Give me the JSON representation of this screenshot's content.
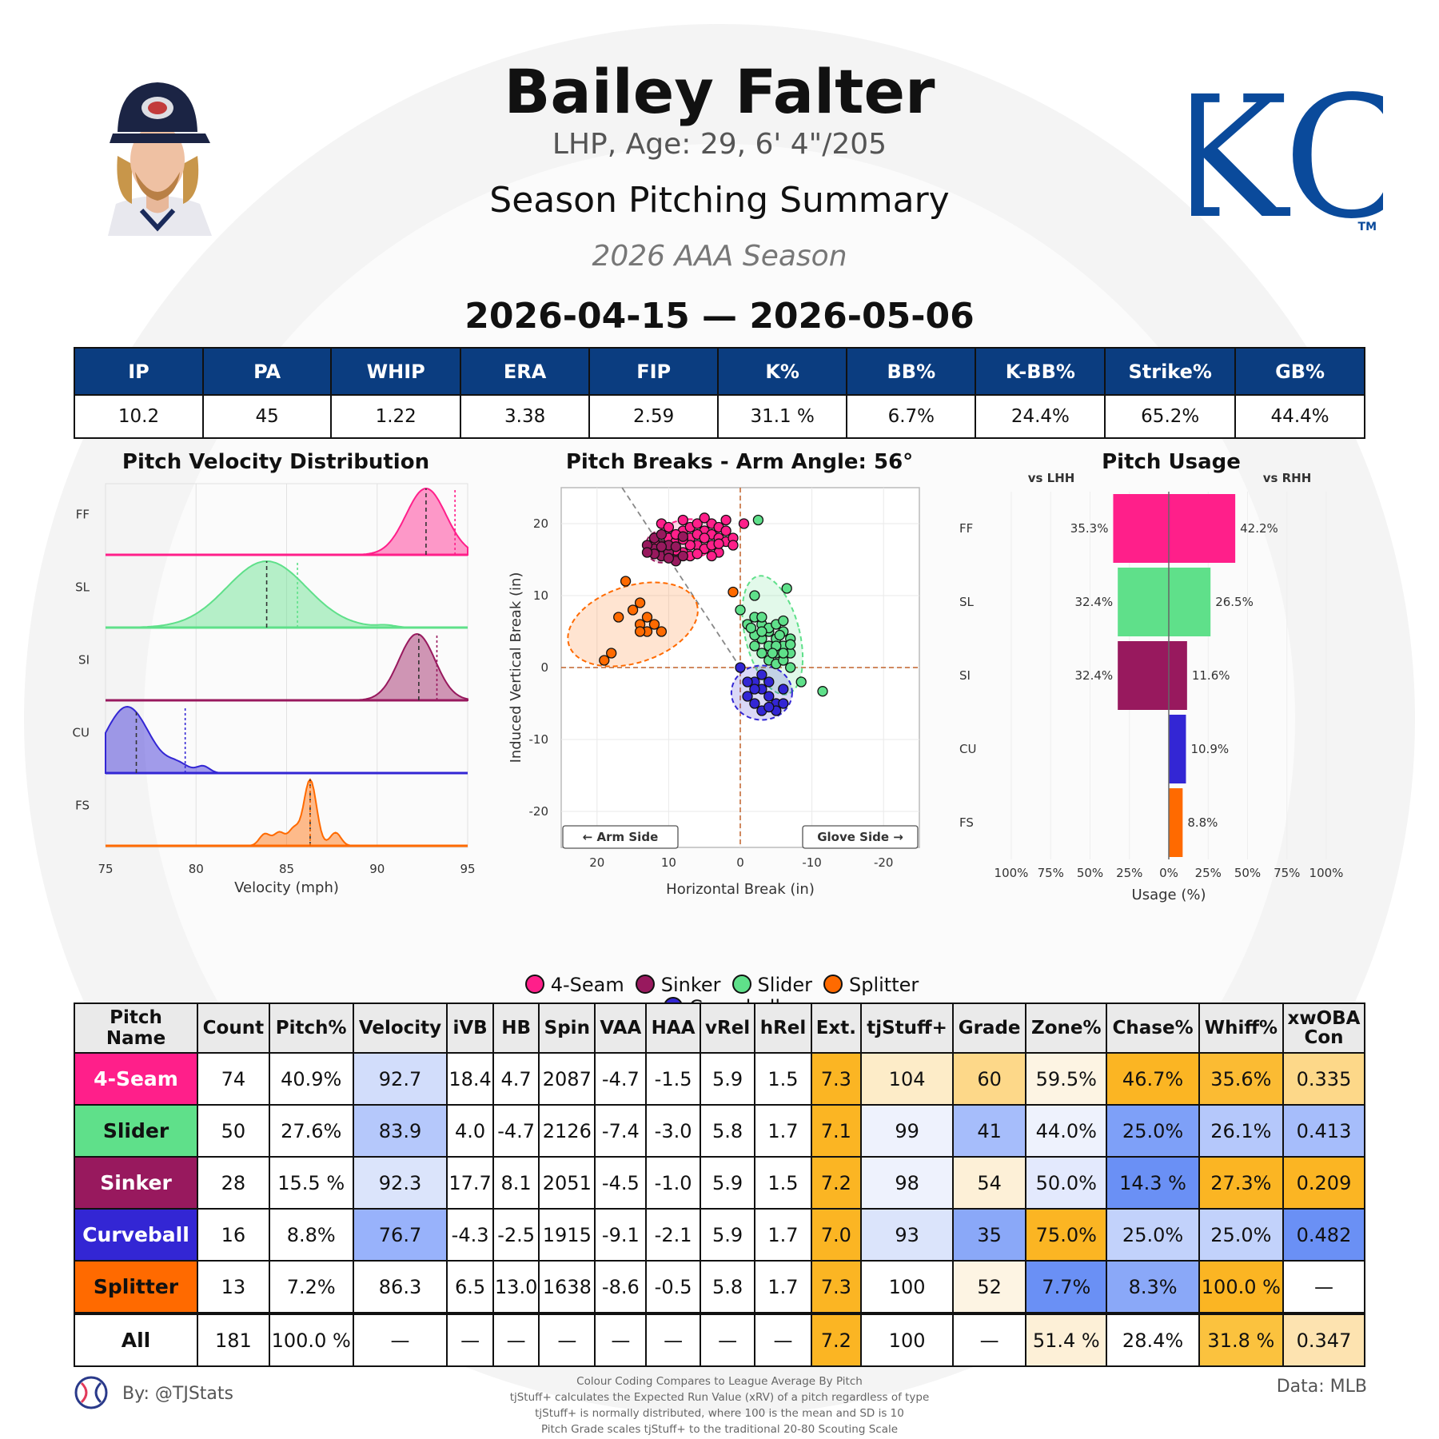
{
  "header": {
    "player_name": "Bailey Falter",
    "bio": "LHP, Age: 29, 6' 4\"/205",
    "summary_title": "Season Pitching Summary",
    "season": "2026 AAA Season",
    "date_range": "2026-04-15 — 2026-05-06",
    "logo_text": "KC",
    "logo_tm": "TM"
  },
  "colors": {
    "header_blue": "#0b3d80",
    "4-Seam": "#ff1f8a",
    "Sinker": "#98195e",
    "Slider": "#5fe08a",
    "Splitter": "#ff6a00",
    "Curveball": "#3326d4"
  },
  "stats": {
    "headers": [
      "IP",
      "PA",
      "WHIP",
      "ERA",
      "FIP",
      "K%",
      "BB%",
      "K-BB%",
      "Strike%",
      "GB%"
    ],
    "values": [
      "10.2",
      "45",
      "1.22",
      "3.38",
      "2.59",
      "31.1 %",
      "6.7%",
      "24.4%",
      "65.2%",
      "44.4%"
    ]
  },
  "charts": {
    "velocity": {
      "title": "Pitch Velocity Distribution",
      "xlabel": "Velocity (mph)",
      "xticks": [
        "75",
        "80",
        "85",
        "90",
        "95"
      ]
    },
    "breaks": {
      "title": "Pitch Breaks - Arm Angle: 56°",
      "xlabel": "Horizontal Break (in)",
      "ylabel": "Induced Vertical Break (in)",
      "xticks": [
        "20",
        "10",
        "0",
        "-10",
        "-20"
      ],
      "yticks": [
        "20",
        "10",
        "0",
        "-10",
        "-20"
      ],
      "arm_side_label": "← Arm Side",
      "glove_side_label": "Glove Side →"
    },
    "usage": {
      "title": "Pitch Usage",
      "lhh_label": "vs LHH",
      "rhh_label": "vs RHH",
      "xlabel": "Usage (%)",
      "xticks": [
        "100%",
        "75%",
        "50%",
        "25%",
        "0%",
        "25%",
        "50%",
        "75%",
        "100%"
      ]
    }
  },
  "chart_data": [
    {
      "type": "area",
      "title": "Pitch Velocity Distribution",
      "xlabel": "Velocity (mph)",
      "xlim": [
        75,
        95
      ],
      "series": [
        {
          "name": "FF",
          "pitch": "4-Seam",
          "mean": 92.7,
          "peak": 92.7,
          "spread": 1.1,
          "marker": 94.3
        },
        {
          "name": "SL",
          "pitch": "Slider",
          "mean": 83.9,
          "peak": 83.9,
          "spread": 2.2,
          "marker": 85.6
        },
        {
          "name": "SI",
          "pitch": "Sinker",
          "mean": 92.3,
          "peak": 92.2,
          "spread": 1.0,
          "marker": 93.3
        },
        {
          "name": "CU",
          "pitch": "Curveball",
          "mean": 76.7,
          "peak": 76.2,
          "spread": 1.2,
          "marker": 79.4
        },
        {
          "name": "FS",
          "pitch": "Splitter",
          "mean": 86.3,
          "peak": 86.3,
          "spread": 0.35,
          "marker": 86.3
        }
      ]
    },
    {
      "type": "scatter",
      "title": "Pitch Breaks - Arm Angle: 56°",
      "xlabel": "Horizontal Break (in)",
      "ylabel": "Induced Vertical Break (in)",
      "xlim": [
        25,
        -25
      ],
      "ylim": [
        -25,
        25
      ],
      "series": [
        {
          "name": "4-Seam",
          "points": [
            [
              11,
              20
            ],
            [
              10,
              18
            ],
            [
              9,
              17.5
            ],
            [
              8,
              19
            ],
            [
              7,
              18
            ],
            [
              6,
              17
            ],
            [
              5,
              19
            ],
            [
              4,
              18.5
            ],
            [
              3,
              18
            ],
            [
              2,
              17.5
            ],
            [
              1,
              18
            ],
            [
              8,
              16
            ],
            [
              7,
              19.5
            ],
            [
              6,
              20
            ],
            [
              5,
              16.5
            ],
            [
              4,
              20
            ],
            [
              3,
              19.5
            ],
            [
              2,
              19
            ],
            [
              1,
              17
            ],
            [
              9,
              18.5
            ],
            [
              10,
              16.5
            ],
            [
              11,
              17
            ],
            [
              12,
              17.5
            ],
            [
              6,
              18.5
            ],
            [
              5,
              18
            ],
            [
              4,
              17
            ],
            [
              3,
              16
            ],
            [
              7,
              15.5
            ],
            [
              8,
              20.5
            ],
            [
              9,
              15
            ],
            [
              10,
              19.5
            ],
            [
              2,
              20.5
            ],
            [
              3,
              17.2
            ],
            [
              5,
              20.8
            ],
            [
              6,
              15.8
            ],
            [
              4,
              15.5
            ],
            [
              -0.5,
              20
            ],
            [
              7,
              17
            ],
            [
              8,
              17.8
            ],
            [
              9,
              16.3
            ]
          ]
        },
        {
          "name": "Sinker",
          "points": [
            [
              12,
              16.5
            ],
            [
              11,
              15.5
            ],
            [
              10,
              16
            ],
            [
              9,
              14.8
            ],
            [
              8,
              15.5
            ],
            [
              12,
              18
            ],
            [
              11,
              18.5
            ],
            [
              10,
              17
            ],
            [
              9,
              16.8
            ],
            [
              13,
              17
            ],
            [
              11,
              16.8
            ],
            [
              10,
              15.2
            ],
            [
              8,
              18.2
            ],
            [
              12,
              15.8
            ],
            [
              13,
              16
            ]
          ]
        },
        {
          "name": "Slider",
          "points": [
            [
              -2.5,
              20.5
            ],
            [
              -6.5,
              11
            ],
            [
              -2,
              10
            ],
            [
              0,
              8
            ],
            [
              -1,
              6
            ],
            [
              -2,
              7
            ],
            [
              -3,
              6
            ],
            [
              -4,
              5
            ],
            [
              -5,
              4
            ],
            [
              -6,
              5
            ],
            [
              -7,
              4
            ],
            [
              -2,
              3
            ],
            [
              -3,
              4
            ],
            [
              -4,
              3
            ],
            [
              -5,
              2
            ],
            [
              -6,
              3
            ],
            [
              -7,
              2
            ],
            [
              -4,
              1
            ],
            [
              -5,
              0.5
            ],
            [
              -6,
              1
            ],
            [
              -3,
              2
            ],
            [
              -4,
              5.5
            ],
            [
              -5,
              6
            ],
            [
              -6,
              6.5
            ],
            [
              -3,
              7
            ],
            [
              -7,
              0
            ],
            [
              -8.5,
              -2
            ],
            [
              -11.5,
              -3.3
            ],
            [
              -2,
              4.5
            ],
            [
              -5,
              3
            ],
            [
              -6,
              2
            ],
            [
              -3,
              5
            ],
            [
              -1.5,
              5.5
            ],
            [
              -7,
              3.2
            ],
            [
              -4.5,
              2
            ],
            [
              -5.5,
              4.5
            ]
          ]
        },
        {
          "name": "Splitter",
          "points": [
            [
              16,
              12
            ],
            [
              14,
              9
            ],
            [
              14,
              6
            ],
            [
              13,
              5
            ],
            [
              14,
              5
            ],
            [
              11,
              5
            ],
            [
              12,
              6
            ],
            [
              13,
              7
            ],
            [
              17,
              7
            ],
            [
              18,
              2
            ],
            [
              19,
              1
            ],
            [
              1,
              10.5
            ],
            [
              15,
              8
            ]
          ]
        },
        {
          "name": "Curveball",
          "points": [
            [
              0,
              0
            ],
            [
              -2,
              -2
            ],
            [
              -3,
              -3
            ],
            [
              -4,
              -4
            ],
            [
              -5,
              -5
            ],
            [
              -3,
              -6
            ],
            [
              -2,
              -5
            ],
            [
              -1,
              -4
            ],
            [
              -6,
              -3
            ],
            [
              -4,
              -2
            ],
            [
              -5,
              -6
            ],
            [
              -2,
              -3
            ],
            [
              -3,
              -1
            ],
            [
              -6,
              -5
            ],
            [
              -1,
              -2
            ],
            [
              -4,
              -5.5
            ]
          ]
        }
      ]
    },
    {
      "type": "bar",
      "title": "Pitch Usage",
      "xlabel": "Usage (%)",
      "categories": [
        "FF",
        "SL",
        "SI",
        "CU",
        "FS"
      ],
      "series": [
        {
          "name": "vs LHH",
          "values": [
            35.3,
            32.4,
            32.4,
            0,
            0
          ],
          "labels": [
            "35.3%",
            "32.4%",
            "32.4%",
            "",
            ""
          ]
        },
        {
          "name": "vs RHH",
          "values": [
            42.2,
            26.5,
            11.6,
            10.9,
            8.8
          ],
          "labels": [
            "42.2%",
            "26.5%",
            "11.6%",
            "10.9%",
            "8.8%"
          ]
        }
      ]
    }
  ],
  "legend": [
    {
      "label": "4-Seam",
      "color": "#ff1f8a"
    },
    {
      "label": "Sinker",
      "color": "#98195e"
    },
    {
      "label": "Slider",
      "color": "#5fe08a"
    },
    {
      "label": "Splitter",
      "color": "#ff6a00"
    },
    {
      "label": "Curveball",
      "color": "#3326d4"
    }
  ],
  "pitch_table": {
    "headers": [
      "Pitch Name",
      "Count",
      "Pitch%",
      "Velocity",
      "iVB",
      "HB",
      "Spin",
      "VAA",
      "HAA",
      "vRel",
      "hRel",
      "Ext.",
      "tjStuff+",
      "Grade",
      "Zone%",
      "Chase%",
      "Whiff%",
      "xwOBA Con"
    ],
    "rows": [
      {
        "name": "4-Seam",
        "color": "#ff1f8a",
        "text": "#ffffff",
        "cells": [
          "74",
          "40.9%",
          "92.7",
          "18.4",
          "4.7",
          "2087",
          "-4.7",
          "-1.5",
          "5.9",
          "1.5",
          "7.3",
          "104",
          "60",
          "59.5%",
          "46.7%",
          "35.6%",
          "0.335"
        ],
        "bg": [
          "#fff",
          "#fff",
          "#d2ddfb",
          "#fff",
          "#fff",
          "#fff",
          "#fff",
          "#fff",
          "#fff",
          "#fff",
          "#fbb523",
          "#fdecc8",
          "#fdd889",
          "#fdf4e3",
          "#fbb523",
          "#fbbb33",
          "#fdd889"
        ]
      },
      {
        "name": "Slider",
        "color": "#5fe08a",
        "text": "#111111",
        "cells": [
          "50",
          "27.6%",
          "83.9",
          "4.0",
          "-4.7",
          "2126",
          "-7.4",
          "-3.0",
          "5.8",
          "1.7",
          "7.1",
          "99",
          "41",
          "44.0%",
          "25.0%",
          "26.1%",
          "0.413"
        ],
        "bg": [
          "#fff",
          "#fff",
          "#b5c8fb",
          "#fff",
          "#fff",
          "#fff",
          "#fff",
          "#fff",
          "#fff",
          "#fff",
          "#fbb523",
          "#eef2fd",
          "#a6bdfb",
          "#eef2fd",
          "#7ea0f8",
          "#b5c8fb",
          "#a6bdfb"
        ]
      },
      {
        "name": "Sinker",
        "color": "#98195e",
        "text": "#ffffff",
        "cells": [
          "28",
          "15.5 %",
          "92.3",
          "17.7",
          "8.1",
          "2051",
          "-4.5",
          "-1.0",
          "5.9",
          "1.5",
          "7.2",
          "98",
          "54",
          "50.0%",
          "14.3 %",
          "27.3%",
          "0.209"
        ],
        "bg": [
          "#fff",
          "#fff",
          "#dbe4fb",
          "#fff",
          "#fff",
          "#fff",
          "#fff",
          "#fff",
          "#fff",
          "#fff",
          "#fbb523",
          "#eef2fd",
          "#fdf0d7",
          "#e3e9fd",
          "#6a90f5",
          "#fbb523",
          "#fbb523"
        ]
      },
      {
        "name": "Curveball",
        "color": "#3326d4",
        "text": "#ffffff",
        "cells": [
          "16",
          "8.8%",
          "76.7",
          "-4.3",
          "-2.5",
          "1915",
          "-9.1",
          "-2.1",
          "5.9",
          "1.7",
          "7.0",
          "93",
          "35",
          "75.0%",
          "25.0%",
          "25.0%",
          "0.482"
        ],
        "bg": [
          "#fff",
          "#fff",
          "#98b2fb",
          "#fff",
          "#fff",
          "#fff",
          "#fff",
          "#fff",
          "#fff",
          "#fff",
          "#fbb523",
          "#dbe4fb",
          "#8aa8f8",
          "#fbb523",
          "#c2d2fb",
          "#c2d2fb",
          "#6a90f5"
        ]
      },
      {
        "name": "Splitter",
        "color": "#ff6a00",
        "text": "#111111",
        "cells": [
          "13",
          "7.2%",
          "86.3",
          "6.5",
          "13.0",
          "1638",
          "-8.6",
          "-0.5",
          "5.8",
          "1.7",
          "7.3",
          "100",
          "52",
          "7.7%",
          "8.3%",
          "100.0 %",
          "—"
        ],
        "bg": [
          "#fff",
          "#fff",
          "#fff",
          "#fff",
          "#fff",
          "#fff",
          "#fff",
          "#fff",
          "#fff",
          "#fff",
          "#fbb523",
          "#fff",
          "#fdf4e3",
          "#6a90f5",
          "#8aa8f8",
          "#fbb523",
          "#fff"
        ]
      },
      {
        "name": "All",
        "color": "#ffffff",
        "text": "#111111",
        "cells": [
          "181",
          "100.0 %",
          "—",
          "—",
          "—",
          "—",
          "—",
          "—",
          "—",
          "—",
          "7.2",
          "100",
          "—",
          "51.4 %",
          "28.4%",
          "31.8 %",
          "0.347"
        ],
        "bg": [
          "#fff",
          "#fff",
          "#fff",
          "#fff",
          "#fff",
          "#fff",
          "#fff",
          "#fff",
          "#fff",
          "#fff",
          "#fbb523",
          "#fff",
          "#fff",
          "#fdf0d7",
          "#fff",
          "#fbc23e",
          "#fde3b0"
        ]
      }
    ]
  },
  "footer": {
    "credit": "By: @TJStats",
    "source": "Data: MLB",
    "notes": [
      "Colour Coding Compares to League Average By Pitch",
      "tjStuff+ calculates the Expected Run Value (xRV) of a pitch regardless of type",
      "tjStuff+ is normally distributed, where 100 is the mean and SD is 10",
      "Pitch Grade scales tjStuff+ to the traditional 20-80 Scouting Scale"
    ]
  }
}
